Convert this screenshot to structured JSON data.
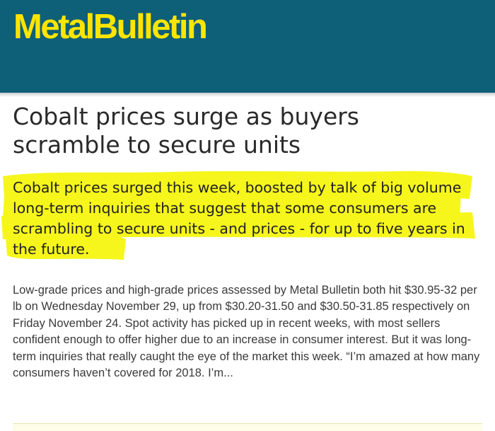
{
  "brand": {
    "logo_text": "MetalBulletin",
    "header_color": "#0e5f78",
    "logo_color": "#ffe500"
  },
  "article": {
    "title": "Cobalt prices surge as buyers scramble to secure units",
    "lede": "Cobalt prices surged this week, boosted by talk of big volume long-term inquiries that suggest that some consumers are scrambling to secure units - and prices - for up to five years in the future.",
    "body": "Low-grade prices and high-grade prices assessed by Metal Bulletin both hit $30.95-32 per lb on Wednesday November 29, up from $30.20-31.50 and $30.50-31.85 respectively on Friday November 24. Spot activity has picked up in recent weeks, with most sellers confident enough to offer higher due to an increase in consumer interest. But it was long-term inquiries that really caught the eye of the market this week. “I’m amazed at how many consumers haven’t covered for 2018. I’m...",
    "highlight_color": "#f6f61c"
  }
}
